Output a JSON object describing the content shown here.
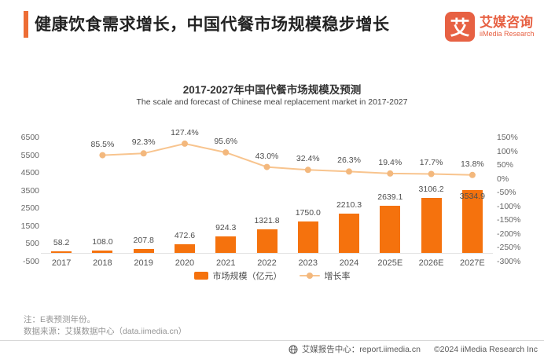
{
  "header": {
    "title": "健康饮食需求增长，中国代餐市场规模稳步增长",
    "logo": {
      "glyph": "艾",
      "name_cn": "艾媒咨询",
      "name_en": "iiMedia Research"
    }
  },
  "chart_data": {
    "type": "combo-bar-line",
    "title": "2017-2027年中国代餐市场规模及预测",
    "subtitle": "The scale and forecast of Chinese meal replacement market in 2017-2027",
    "categories": [
      "2017",
      "2018",
      "2019",
      "2020",
      "2021",
      "2022",
      "2023",
      "2024",
      "2025E",
      "2026E",
      "2027E"
    ],
    "series": [
      {
        "name": "市场规模（亿元）",
        "type": "bar",
        "axis": "left",
        "color": "#F5720D",
        "values": [
          58.2,
          108.0,
          207.8,
          472.6,
          924.3,
          1321.8,
          1750.0,
          2210.3,
          2639.1,
          3106.2,
          3534.9
        ]
      },
      {
        "name": "增长率",
        "type": "line",
        "axis": "right",
        "unit": "%",
        "color": "#F8C48E",
        "marker_color": "#F3B87D",
        "values": [
          null,
          85.5,
          92.3,
          127.4,
          95.6,
          43.0,
          32.4,
          26.3,
          19.4,
          17.7,
          13.8
        ]
      }
    ],
    "left_axis": {
      "min": -500,
      "max": 6500,
      "ticks": [
        6500,
        5500,
        4500,
        3500,
        2500,
        1500,
        500,
        -500
      ]
    },
    "right_axis": {
      "min": -300,
      "max": 150,
      "ticks": [
        150,
        100,
        50,
        0,
        -50,
        -100,
        -150,
        -200,
        -250,
        -300
      ],
      "suffix": "%"
    },
    "grid": false,
    "legend_position": "bottom"
  },
  "notes": [
    "注：E表预测年份。",
    "数据来源：艾媒数据中心（data.iimedia.cn）"
  ],
  "footer": {
    "report_label": "艾媒报告中心：report.iimedia.cn",
    "copyright": "©2024  iiMedia Research Inc"
  },
  "colors": {
    "bar": "#F5720D",
    "line": "#F8C48E",
    "marker": "#F3B87D",
    "accent": "#ED6D35",
    "brand": "#E76143"
  }
}
